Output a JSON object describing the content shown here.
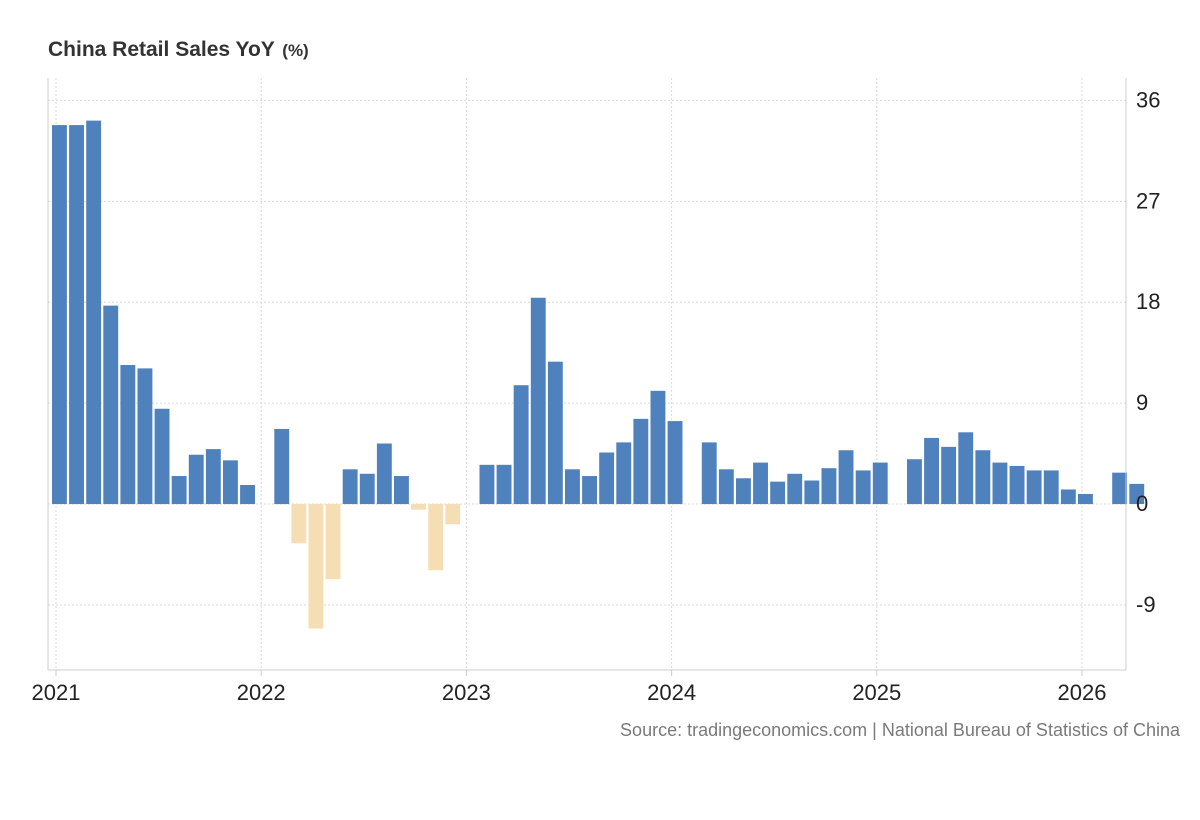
{
  "chart_data": {
    "type": "bar",
    "title": "China Retail Sales YoY",
    "unit": "(%)",
    "source": "Source: tradingeconomics.com | National Bureau of Statistics of China",
    "xlabel": "",
    "ylabel": "",
    "ylim": [
      -14.8,
      38
    ],
    "yticks": [
      36,
      27,
      18,
      9,
      0,
      -9
    ],
    "xticks": [
      "2021",
      "2022",
      "2023",
      "2024",
      "2025",
      "2026"
    ],
    "colors": {
      "positive": "#4f81bd",
      "negative": "#f5deb3",
      "grid": "#d9d9d9",
      "axis": "#cccccc"
    },
    "series": [
      {
        "name": "Retail Sales YoY",
        "points": [
          {
            "period": "2021-01",
            "value": 33.8
          },
          {
            "period": "2021-02",
            "value": 33.8
          },
          {
            "period": "2021-03",
            "value": 34.2
          },
          {
            "period": "2021-04",
            "value": 17.7
          },
          {
            "period": "2021-05",
            "value": 12.4
          },
          {
            "period": "2021-06",
            "value": 12.1
          },
          {
            "period": "2021-07",
            "value": 8.5
          },
          {
            "period": "2021-08",
            "value": 2.5
          },
          {
            "period": "2021-09",
            "value": 4.4
          },
          {
            "period": "2021-10",
            "value": 4.9
          },
          {
            "period": "2021-11",
            "value": 3.9
          },
          {
            "period": "2021-12",
            "value": 1.7
          },
          {
            "period": "2022-02",
            "value": 6.7
          },
          {
            "period": "2022-03",
            "value": -3.5
          },
          {
            "period": "2022-04",
            "value": -11.1
          },
          {
            "period": "2022-05",
            "value": -6.7
          },
          {
            "period": "2022-06",
            "value": 3.1
          },
          {
            "period": "2022-07",
            "value": 2.7
          },
          {
            "period": "2022-08",
            "value": 5.4
          },
          {
            "period": "2022-09",
            "value": 2.5
          },
          {
            "period": "2022-10",
            "value": -0.5
          },
          {
            "period": "2022-11",
            "value": -5.9
          },
          {
            "period": "2022-12",
            "value": -1.8
          },
          {
            "period": "2023-02",
            "value": 3.5
          },
          {
            "period": "2023-03",
            "value": 3.5
          },
          {
            "period": "2023-04",
            "value": 10.6
          },
          {
            "period": "2023-05",
            "value": 18.4
          },
          {
            "period": "2023-06",
            "value": 12.7
          },
          {
            "period": "2023-07",
            "value": 3.1
          },
          {
            "period": "2023-08",
            "value": 2.5
          },
          {
            "period": "2023-09",
            "value": 4.6
          },
          {
            "period": "2023-10",
            "value": 5.5
          },
          {
            "period": "2023-11",
            "value": 7.6
          },
          {
            "period": "2023-12",
            "value": 10.1
          },
          {
            "period": "2024-01",
            "value": 7.4
          },
          {
            "period": "2024-03",
            "value": 5.5
          },
          {
            "period": "2024-04",
            "value": 3.1
          },
          {
            "period": "2024-05",
            "value": 2.3
          },
          {
            "period": "2024-06",
            "value": 3.7
          },
          {
            "period": "2024-07",
            "value": 2.0
          },
          {
            "period": "2024-08",
            "value": 2.7
          },
          {
            "period": "2024-09",
            "value": 2.1
          },
          {
            "period": "2024-10",
            "value": 3.2
          },
          {
            "period": "2024-11",
            "value": 4.8
          },
          {
            "period": "2024-12",
            "value": 3.0
          },
          {
            "period": "2025-01",
            "value": 3.7
          },
          {
            "period": "2025-03",
            "value": 4.0
          },
          {
            "period": "2025-04",
            "value": 5.9
          },
          {
            "period": "2025-05",
            "value": 5.1
          },
          {
            "period": "2025-06",
            "value": 6.4
          },
          {
            "period": "2025-07",
            "value": 4.8
          },
          {
            "period": "2025-08",
            "value": 3.7
          },
          {
            "period": "2025-09",
            "value": 3.4
          },
          {
            "period": "2025-10",
            "value": 3.0
          },
          {
            "period": "2025-11",
            "value": 3.0
          },
          {
            "period": "2025-12",
            "value": 1.3
          },
          {
            "period": "2026-01",
            "value": 0.9
          },
          {
            "period": "2026-03",
            "value": 2.8
          },
          {
            "period": "2026-04",
            "value": 1.8
          }
        ]
      }
    ]
  }
}
